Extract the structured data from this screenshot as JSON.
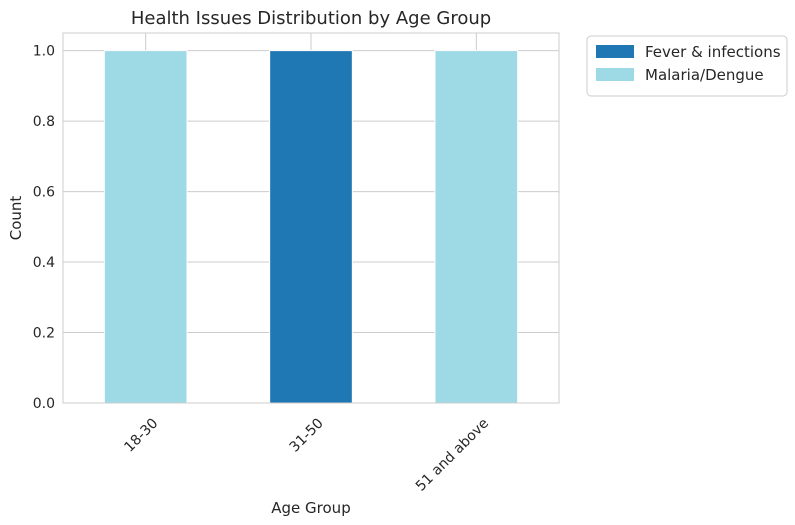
{
  "chart_data": {
    "type": "bar",
    "stacked": true,
    "title": "Health Issues Distribution by Age Group",
    "xlabel": "Age Group",
    "ylabel": "Count",
    "categories": [
      "18-30",
      "31-50",
      "51 and above"
    ],
    "series": [
      {
        "name": "Fever & infections",
        "color": "#1f77b4",
        "values": [
          0,
          1,
          0
        ]
      },
      {
        "name": "Malaria/Dengue",
        "color": "#9edae5",
        "values": [
          1,
          0,
          1
        ]
      }
    ],
    "ylim": [
      0,
      1.05
    ],
    "yticks": [
      "0.0",
      "0.2",
      "0.4",
      "0.6",
      "0.8",
      "1.0"
    ],
    "grid": true,
    "legend_position": "outside-top-right",
    "tick_label_rotation_deg": 45
  }
}
